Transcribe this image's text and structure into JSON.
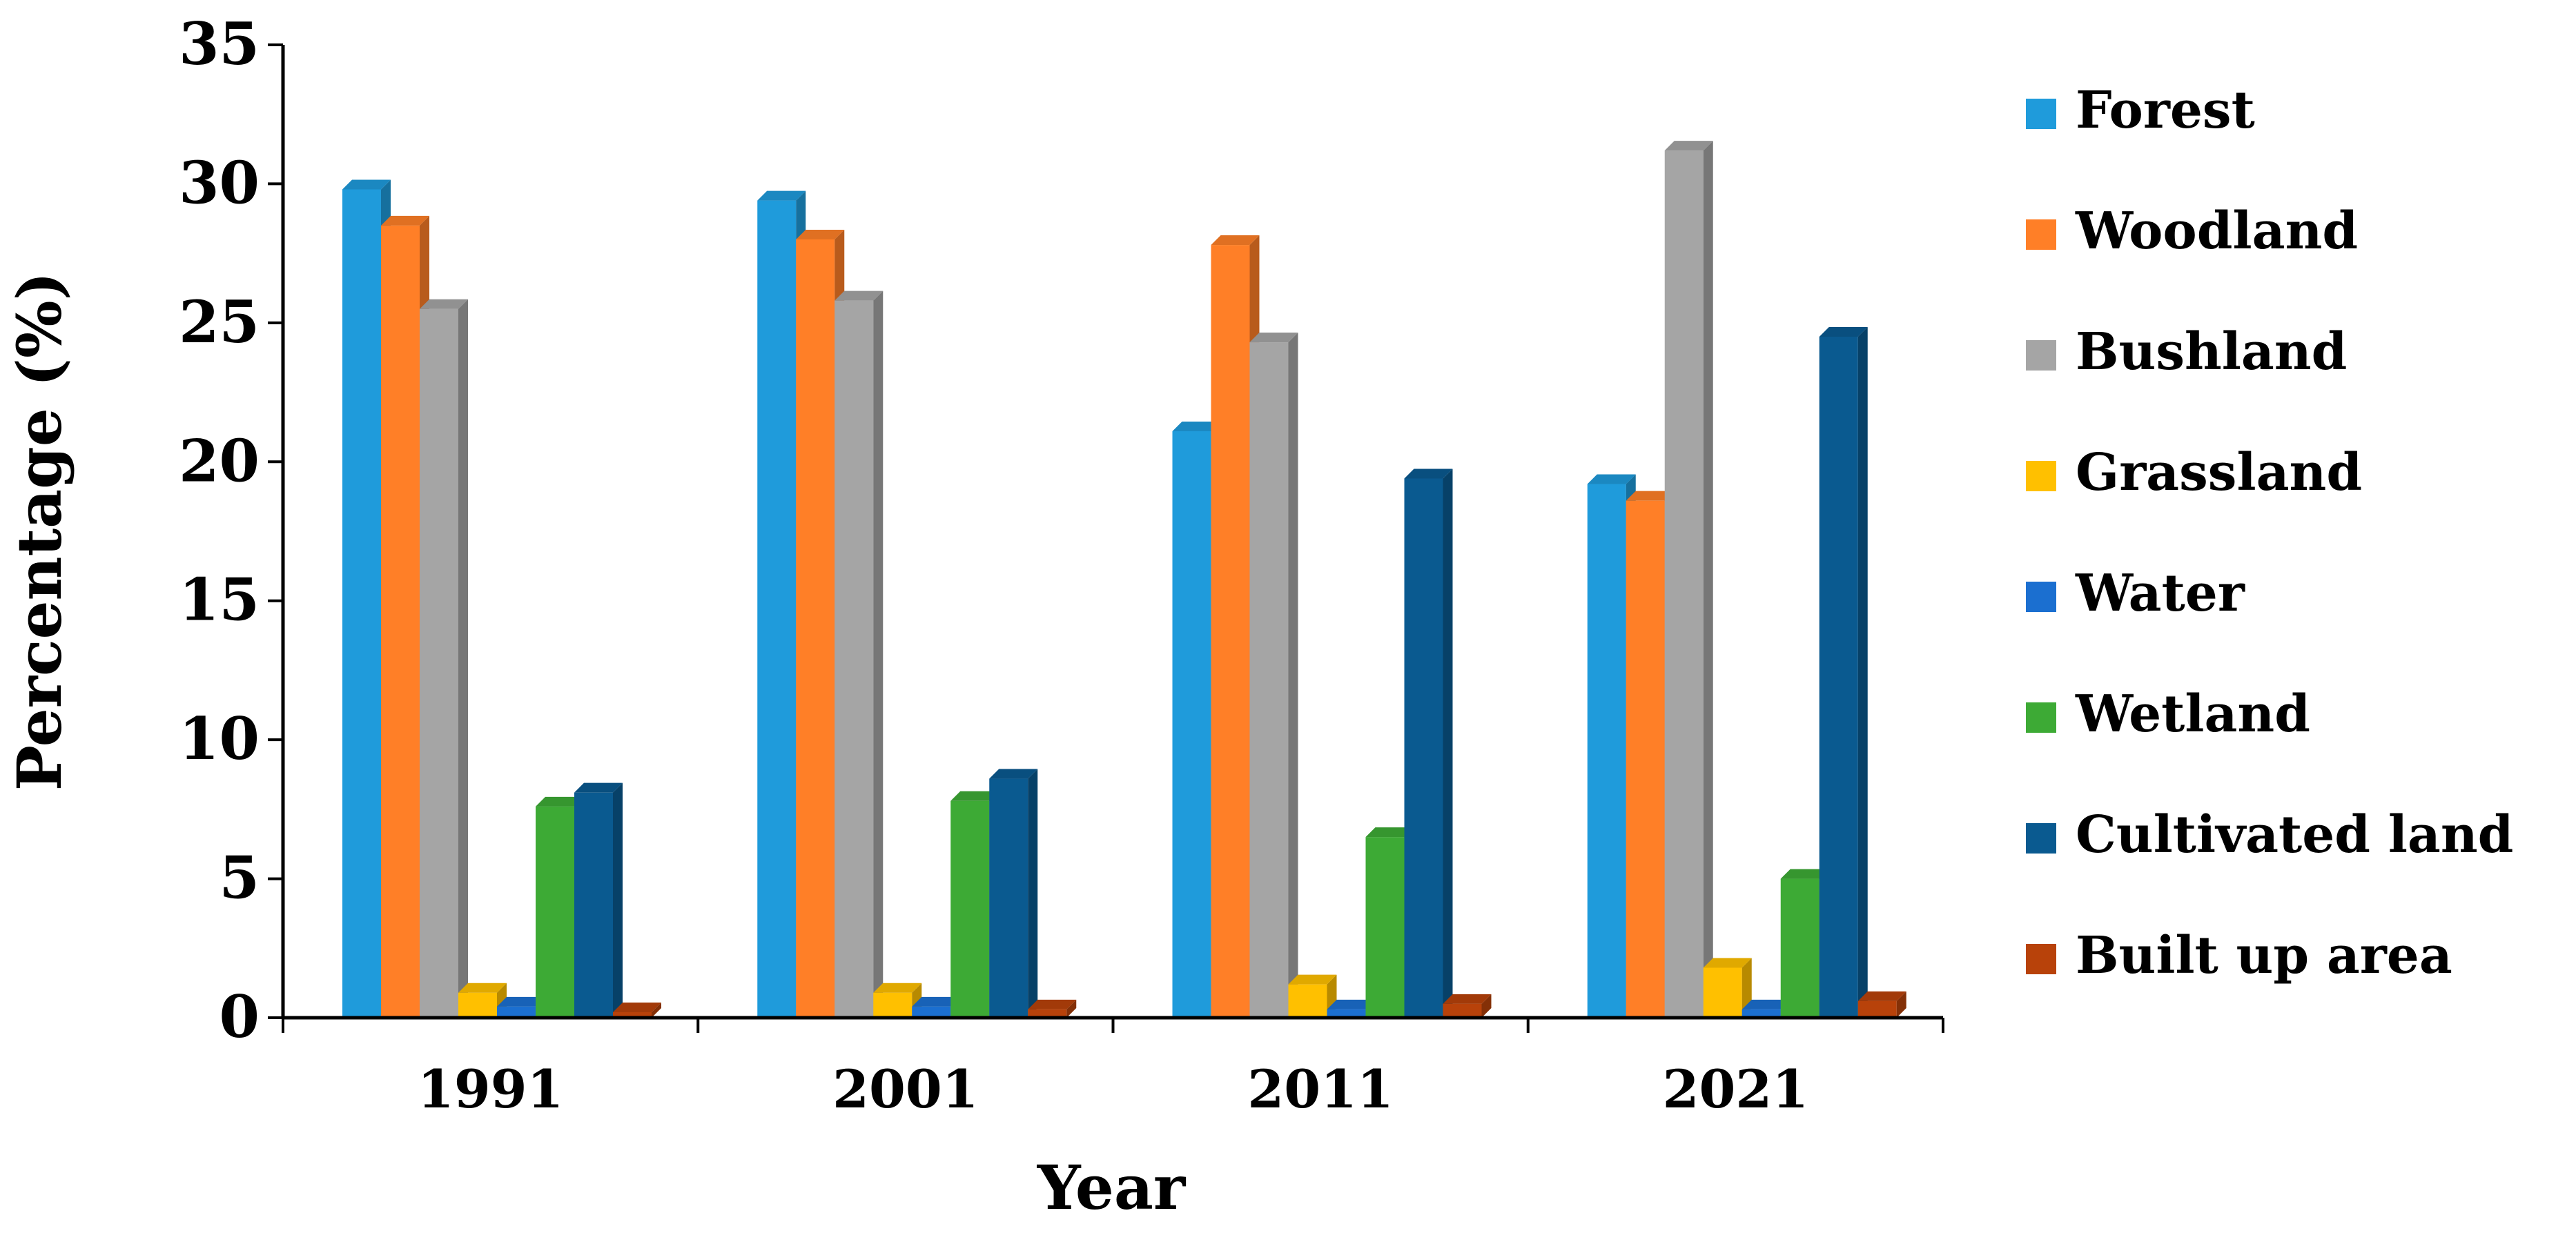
{
  "chart_data": {
    "type": "bar",
    "title": "",
    "xlabel": "Year",
    "ylabel": "Percentage (%)",
    "ylim": [
      0,
      35
    ],
    "yticks": [
      0,
      5,
      10,
      15,
      20,
      25,
      30,
      35
    ],
    "grid": false,
    "legend_position": "right",
    "categories": [
      "1991",
      "2001",
      "2011",
      "2021"
    ],
    "series": [
      {
        "name": "Forest",
        "color": "#1F9BDB",
        "values": [
          29.8,
          29.4,
          21.1,
          19.2
        ]
      },
      {
        "name": "Woodland",
        "color": "#FF7F27",
        "values": [
          28.5,
          28.0,
          27.8,
          18.6
        ]
      },
      {
        "name": "Bushland",
        "color": "#A5A5A5",
        "values": [
          25.5,
          25.8,
          24.3,
          31.2
        ]
      },
      {
        "name": "Grassland",
        "color": "#FFC000",
        "values": [
          0.9,
          0.9,
          1.2,
          1.8
        ]
      },
      {
        "name": "Water",
        "color": "#1B6FD0",
        "values": [
          0.4,
          0.4,
          0.3,
          0.3
        ]
      },
      {
        "name": "Wetland",
        "color": "#3DAA35",
        "values": [
          7.6,
          7.8,
          6.5,
          5.0
        ]
      },
      {
        "name": "Cultivated land",
        "color": "#0A5A90",
        "values": [
          8.1,
          8.6,
          19.4,
          24.5
        ]
      },
      {
        "name": "Built up area",
        "color": "#B8420A",
        "values": [
          0.2,
          0.3,
          0.5,
          0.6
        ]
      }
    ]
  }
}
